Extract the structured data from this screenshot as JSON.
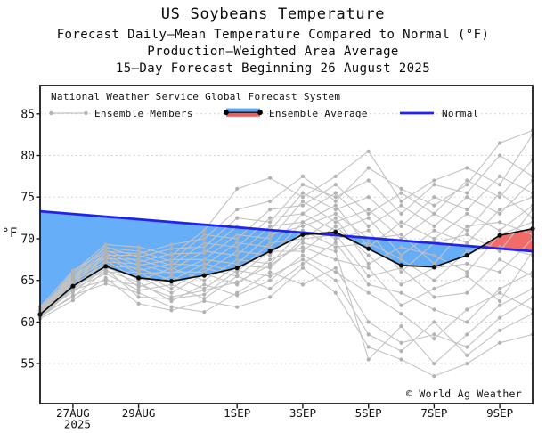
{
  "header": {
    "title": "US Soybeans Temperature",
    "subtitle1": "Forecast Daily–Mean Temperature Compared to Normal (°F)",
    "subtitle2": "Production–Weighted Area Average",
    "subtitle3": "15–Day Forecast Beginning 26 August 2025"
  },
  "legend": {
    "source_line": "National Weather Service Global Forecast System",
    "items": [
      {
        "label": "Ensemble Members",
        "swatch": "gray-line-dots"
      },
      {
        "label": "Ensemble Average",
        "swatch": "blue-red-band"
      },
      {
        "label": "Normal",
        "swatch": "blue-line"
      }
    ]
  },
  "watermark": "© World Ag Weather",
  "colors": {
    "blue_fill": "#55a5f6",
    "red_fill": "#f15b5b",
    "normal_line": "#2222ee",
    "average_line": "#0b0b0b",
    "member_line": "#c3c3c3",
    "member_dot": "#b2b2b2",
    "grid": "#c9c9c9",
    "border": "#1a1a1a",
    "text": "#111111"
  },
  "chart_data": {
    "type": "line",
    "title": "US Soybeans Temperature",
    "xlabel": "",
    "ylabel": "°F",
    "ylim": [
      50.2,
      88.4
    ],
    "yticks": [
      55,
      60,
      65,
      70,
      75,
      80,
      85
    ],
    "grid": "horizontal-dotted",
    "legend_position": "top-inside",
    "x_dates": [
      "26AUG",
      "27AUG",
      "28AUG",
      "29AUG",
      "30AUG",
      "31AUG",
      "1SEP",
      "2SEP",
      "3SEP",
      "4SEP",
      "5SEP",
      "6SEP",
      "7SEP",
      "8SEP",
      "9SEP",
      "10SEP"
    ],
    "xticks": [
      {
        "day": 1,
        "label": "27AUG",
        "sub": "2025"
      },
      {
        "day": 3,
        "label": "29AUG"
      },
      {
        "day": 6,
        "label": "1SEP"
      },
      {
        "day": 8,
        "label": "3SEP"
      },
      {
        "day": 10,
        "label": "5SEP"
      },
      {
        "day": 12,
        "label": "7SEP"
      },
      {
        "day": 14,
        "label": "9SEP"
      }
    ],
    "series": [
      {
        "name": "Ensemble Average",
        "values": [
          60.9,
          64.3,
          66.7,
          65.3,
          64.9,
          65.6,
          66.5,
          68.5,
          70.5,
          70.8,
          68.8,
          66.8,
          66.6,
          68.0,
          70.4,
          71.2
        ]
      },
      {
        "name": "Normal",
        "values": [
          73.3,
          72.98,
          72.66,
          72.34,
          72.02,
          71.7,
          71.38,
          71.06,
          70.74,
          70.42,
          70.1,
          69.78,
          69.46,
          69.14,
          68.82,
          68.5
        ]
      }
    ],
    "fill_rule": "blue where Normal > Ensemble Average, red where Ensemble Average > Normal",
    "ensemble_members": [
      [
        60.4,
        62.6,
        65.3,
        62.2,
        61.4,
        62.5,
        61.8,
        63.0,
        66.5,
        63.5,
        57.0,
        55.5,
        53.5,
        55.0,
        57.5,
        58.5
      ],
      [
        60.6,
        63.2,
        64.6,
        63.5,
        61.8,
        61.2,
        63.5,
        66.0,
        64.5,
        66.5,
        60.0,
        57.5,
        58.5,
        57.0,
        60.5,
        63.0
      ],
      [
        60.8,
        63.0,
        66.2,
        64.8,
        62.5,
        64.5,
        63.2,
        65.0,
        68.0,
        66.0,
        63.5,
        61.0,
        58.0,
        61.5,
        63.5,
        61.5
      ],
      [
        60.7,
        64.0,
        65.8,
        63.8,
        64.5,
        62.8,
        65.5,
        64.0,
        67.0,
        69.5,
        64.5,
        63.5,
        61.5,
        60.0,
        64.0,
        66.0
      ],
      [
        61.0,
        63.6,
        66.5,
        65.5,
        63.5,
        65.8,
        64.5,
        67.5,
        69.0,
        67.5,
        66.5,
        62.0,
        64.0,
        65.5,
        62.5,
        68.5
      ],
      [
        61.1,
        64.4,
        67.0,
        64.2,
        65.5,
        64.0,
        66.8,
        66.5,
        70.0,
        70.5,
        65.5,
        66.5,
        63.0,
        63.5,
        67.5,
        65.5
      ],
      [
        60.9,
        64.8,
        66.0,
        66.0,
        64.0,
        66.5,
        65.5,
        68.5,
        68.5,
        71.5,
        68.0,
        64.5,
        66.5,
        67.0,
        66.0,
        70.0
      ],
      [
        61.2,
        64.2,
        67.4,
        65.0,
        66.5,
        65.0,
        67.5,
        67.0,
        71.0,
        69.0,
        69.5,
        67.5,
        65.0,
        68.5,
        69.0,
        68.0
      ],
      [
        61.0,
        65.0,
        66.8,
        66.5,
        65.0,
        67.0,
        66.0,
        69.5,
        70.0,
        72.5,
        67.0,
        69.0,
        68.0,
        66.0,
        70.5,
        72.0
      ],
      [
        61.3,
        64.6,
        67.8,
        65.8,
        66.0,
        66.0,
        68.5,
        68.0,
        72.0,
        70.0,
        71.0,
        66.0,
        69.5,
        70.5,
        68.5,
        73.5
      ],
      [
        60.8,
        65.2,
        67.2,
        67.0,
        65.8,
        67.5,
        67.0,
        70.5,
        71.5,
        73.0,
        70.0,
        70.5,
        67.0,
        71.5,
        72.0,
        70.5
      ],
      [
        61.4,
        64.9,
        68.0,
        66.2,
        67.0,
        66.8,
        69.5,
        69.0,
        73.0,
        71.0,
        72.5,
        68.0,
        71.0,
        69.5,
        73.5,
        75.0
      ],
      [
        61.1,
        65.4,
        67.6,
        67.5,
        66.3,
        68.5,
        68.0,
        71.5,
        72.0,
        74.0,
        69.0,
        72.0,
        70.0,
        73.0,
        71.0,
        74.0
      ],
      [
        61.5,
        65.1,
        68.3,
        66.8,
        67.5,
        67.5,
        70.5,
        70.0,
        74.5,
        72.0,
        73.5,
        70.0,
        73.0,
        71.0,
        75.5,
        72.5
      ],
      [
        61.2,
        65.6,
        68.0,
        68.0,
        66.8,
        69.5,
        69.0,
        72.5,
        73.0,
        75.5,
        71.5,
        74.0,
        71.5,
        75.0,
        73.0,
        77.0
      ],
      [
        61.6,
        65.3,
        68.6,
        67.2,
        68.2,
        68.3,
        71.5,
        71.0,
        75.5,
        73.5,
        75.0,
        71.5,
        75.0,
        73.5,
        77.5,
        75.5
      ],
      [
        61.3,
        65.8,
        68.9,
        68.5,
        67.3,
        70.5,
        70.0,
        73.5,
        74.0,
        76.5,
        73.0,
        75.5,
        73.0,
        77.0,
        75.0,
        79.5
      ],
      [
        61.7,
        65.5,
        69.0,
        67.8,
        68.8,
        69.0,
        72.5,
        72.0,
        76.5,
        75.0,
        77.0,
        73.0,
        76.5,
        75.5,
        80.0,
        77.5
      ],
      [
        61.4,
        66.0,
        69.3,
        69.0,
        68.0,
        71.0,
        76.0,
        77.3,
        75.0,
        77.5,
        80.5,
        74.5,
        77.0,
        78.5,
        76.5,
        82.5
      ],
      [
        61.8,
        66.2,
        68.5,
        68.2,
        69.3,
        70.0,
        73.5,
        74.5,
        77.5,
        74.5,
        78.5,
        76.0,
        74.0,
        76.5,
        81.5,
        83.0
      ],
      [
        60.5,
        63.9,
        65.0,
        64.5,
        63.0,
        63.8,
        64.8,
        66.8,
        69.5,
        68.5,
        55.5,
        59.5,
        55.0,
        58.5,
        62.0,
        64.0
      ],
      [
        60.6,
        64.1,
        66.4,
        63.0,
        62.8,
        63.3,
        66.2,
        65.5,
        67.5,
        65.0,
        58.5,
        56.5,
        60.0,
        56.0,
        59.0,
        61.0
      ]
    ]
  }
}
